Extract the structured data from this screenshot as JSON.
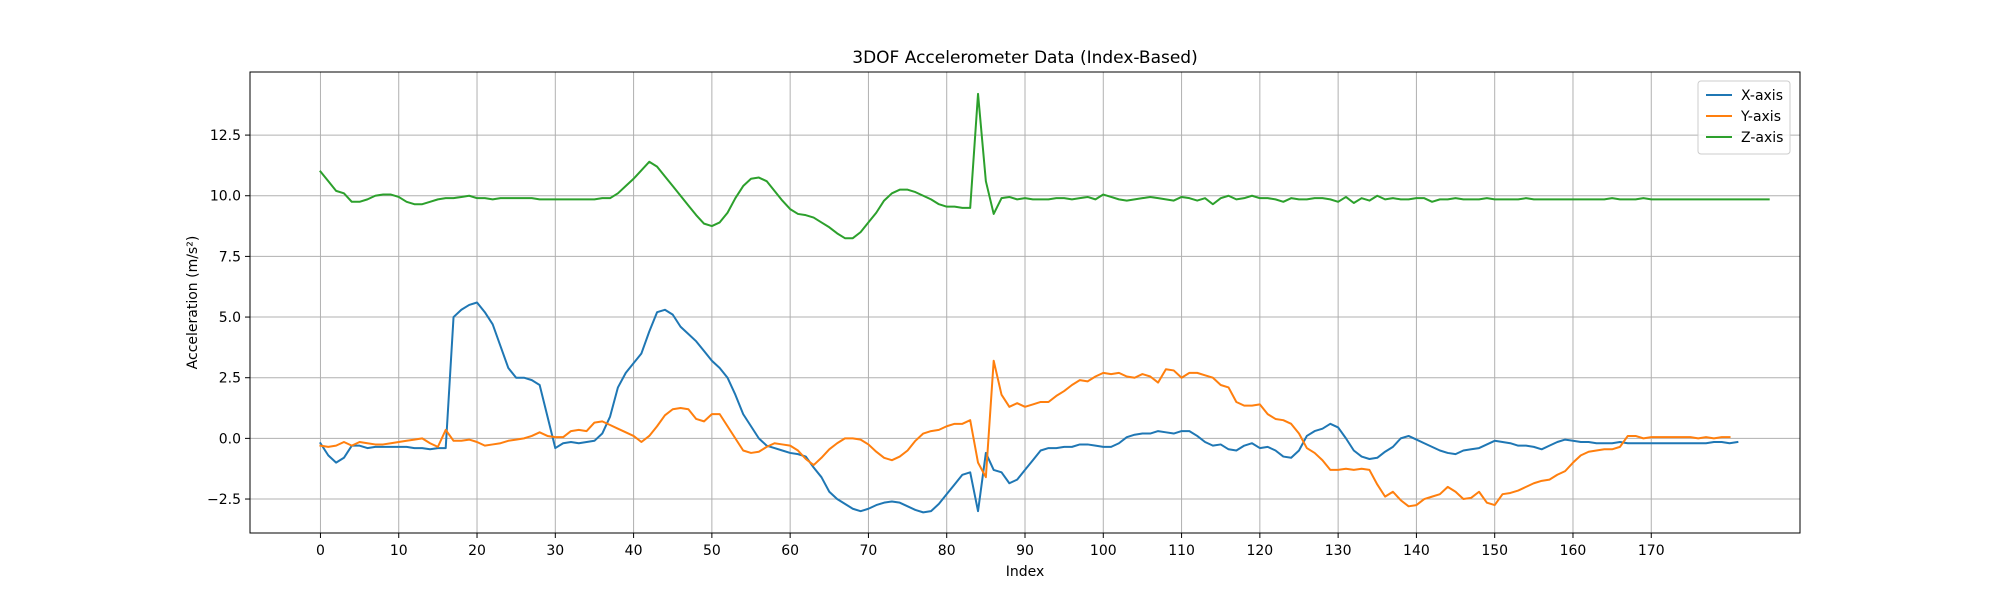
{
  "chart_data": {
    "type": "line",
    "title": "3DOF Accelerometer Data (Index-Based)",
    "xlabel": "Index",
    "ylabel": "Acceleration (m/s²)",
    "xlim": [
      -9,
      189
    ],
    "ylim": [
      -3.9,
      15.1
    ],
    "xticks": [
      0,
      10,
      20,
      30,
      40,
      50,
      60,
      70,
      80,
      90,
      100,
      110,
      120,
      130,
      140,
      150,
      160,
      170
    ],
    "yticks": [
      -2.5,
      0.0,
      2.5,
      5.0,
      7.5,
      10.0,
      12.5
    ],
    "ytick_labels": [
      "−2.5",
      "0.0",
      "2.5",
      "5.0",
      "7.5",
      "10.0",
      "12.5"
    ],
    "grid": true,
    "legend": "top-right",
    "x_start": 0,
    "series": [
      {
        "name": "X-axis",
        "color": "#1f77b4",
        "values": [
          -0.2,
          -0.7,
          -1.0,
          -0.8,
          -0.3,
          -0.3,
          -0.4,
          -0.35,
          -0.35,
          -0.35,
          -0.35,
          -0.35,
          -0.4,
          -0.4,
          -0.45,
          -0.4,
          -0.4,
          5.0,
          5.3,
          5.5,
          5.6,
          5.2,
          4.7,
          3.8,
          2.9,
          2.5,
          2.5,
          2.4,
          2.2,
          0.9,
          -0.4,
          -0.2,
          -0.15,
          -0.2,
          -0.15,
          -0.1,
          0.2,
          0.9,
          2.1,
          2.7,
          3.1,
          3.5,
          4.4,
          5.2,
          5.3,
          5.1,
          4.6,
          4.3,
          4.0,
          3.6,
          3.2,
          2.9,
          2.5,
          1.8,
          1.0,
          0.5,
          0.0,
          -0.3,
          -0.4,
          -0.5,
          -0.6,
          -0.65,
          -0.75,
          -1.2,
          -1.6,
          -2.2,
          -2.5,
          -2.7,
          -2.9,
          -3.0,
          -2.9,
          -2.75,
          -2.65,
          -2.6,
          -2.65,
          -2.8,
          -2.95,
          -3.05,
          -3.0,
          -2.7,
          -2.3,
          -1.9,
          -1.5,
          -1.4,
          -3.0,
          -0.6,
          -1.3,
          -1.4,
          -1.85,
          -1.7,
          -1.3,
          -0.9,
          -0.5,
          -0.4,
          -0.4,
          -0.35,
          -0.35,
          -0.25,
          -0.25,
          -0.3,
          -0.35,
          -0.35,
          -0.2,
          0.05,
          0.15,
          0.2,
          0.2,
          0.3,
          0.25,
          0.2,
          0.3,
          0.3,
          0.1,
          -0.15,
          -0.3,
          -0.25,
          -0.45,
          -0.5,
          -0.3,
          -0.2,
          -0.4,
          -0.35,
          -0.5,
          -0.75,
          -0.8,
          -0.5,
          0.1,
          0.3,
          0.4,
          0.6,
          0.45,
          0.0,
          -0.5,
          -0.75,
          -0.85,
          -0.8,
          -0.55,
          -0.35,
          0.0,
          0.1,
          -0.05,
          -0.2,
          -0.35,
          -0.5,
          -0.6,
          -0.65,
          -0.5,
          -0.45,
          -0.4,
          -0.25,
          -0.1,
          -0.15,
          -0.2,
          -0.3,
          -0.3,
          -0.35,
          -0.45,
          -0.3,
          -0.15,
          -0.05,
          -0.1,
          -0.15,
          -0.15,
          -0.2,
          -0.2,
          -0.2,
          -0.15,
          -0.2,
          -0.2,
          -0.2,
          -0.2,
          -0.2,
          -0.2,
          -0.2,
          -0.2,
          -0.2,
          -0.2,
          -0.2,
          -0.15,
          -0.15,
          -0.2,
          -0.15
        ]
      },
      {
        "name": "Y-axis",
        "color": "#ff7f0e",
        "values": [
          -0.3,
          -0.35,
          -0.3,
          -0.15,
          -0.3,
          -0.15,
          -0.2,
          -0.25,
          -0.25,
          -0.2,
          -0.15,
          -0.1,
          -0.05,
          0.0,
          -0.2,
          -0.35,
          0.35,
          -0.1,
          -0.1,
          -0.05,
          -0.15,
          -0.3,
          -0.25,
          -0.2,
          -0.1,
          -0.05,
          0.0,
          0.1,
          0.25,
          0.1,
          0.05,
          0.05,
          0.3,
          0.35,
          0.3,
          0.65,
          0.7,
          0.55,
          0.4,
          0.25,
          0.1,
          -0.15,
          0.1,
          0.5,
          0.95,
          1.2,
          1.25,
          1.2,
          0.8,
          0.7,
          1.0,
          1.0,
          0.5,
          0.0,
          -0.5,
          -0.6,
          -0.55,
          -0.35,
          -0.2,
          -0.25,
          -0.3,
          -0.5,
          -0.85,
          -1.1,
          -0.8,
          -0.45,
          -0.2,
          0.0,
          0.0,
          -0.05,
          -0.25,
          -0.55,
          -0.8,
          -0.9,
          -0.75,
          -0.5,
          -0.1,
          0.2,
          0.3,
          0.35,
          0.5,
          0.6,
          0.6,
          0.75,
          -1.0,
          -1.6,
          3.2,
          1.8,
          1.3,
          1.45,
          1.3,
          1.4,
          1.5,
          1.5,
          1.75,
          1.95,
          2.2,
          2.4,
          2.35,
          2.55,
          2.7,
          2.65,
          2.7,
          2.55,
          2.5,
          2.65,
          2.55,
          2.3,
          2.85,
          2.8,
          2.5,
          2.7,
          2.7,
          2.6,
          2.5,
          2.2,
          2.1,
          1.5,
          1.35,
          1.35,
          1.4,
          1.0,
          0.8,
          0.75,
          0.6,
          0.2,
          -0.4,
          -0.6,
          -0.9,
          -1.3,
          -1.3,
          -1.25,
          -1.3,
          -1.25,
          -1.3,
          -1.9,
          -2.4,
          -2.2,
          -2.55,
          -2.8,
          -2.75,
          -2.5,
          -2.4,
          -2.3,
          -2.0,
          -2.2,
          -2.5,
          -2.45,
          -2.2,
          -2.65,
          -2.75,
          -2.3,
          -2.25,
          -2.15,
          -2.0,
          -1.85,
          -1.75,
          -1.7,
          -1.5,
          -1.35,
          -1.0,
          -0.7,
          -0.55,
          -0.5,
          -0.45,
          -0.45,
          -0.35,
          0.1,
          0.1,
          0.0,
          0.05,
          0.05,
          0.05,
          0.05,
          0.05,
          0.05,
          0.0,
          0.05,
          0.0,
          0.05,
          0.05
        ]
      },
      {
        "name": "Z-axis",
        "color": "#2ca02c",
        "values": [
          11.0,
          10.6,
          10.2,
          10.1,
          9.75,
          9.75,
          9.85,
          10.0,
          10.05,
          10.05,
          9.95,
          9.75,
          9.65,
          9.65,
          9.75,
          9.85,
          9.9,
          9.9,
          9.95,
          10.0,
          9.9,
          9.9,
          9.85,
          9.9,
          9.9,
          9.9,
          9.9,
          9.9,
          9.85,
          9.85,
          9.85,
          9.85,
          9.85,
          9.85,
          9.85,
          9.85,
          9.9,
          9.9,
          10.1,
          10.4,
          10.7,
          11.05,
          11.4,
          11.2,
          10.8,
          10.4,
          10.0,
          9.6,
          9.2,
          8.85,
          8.75,
          8.9,
          9.3,
          9.9,
          10.4,
          10.7,
          10.75,
          10.6,
          10.2,
          9.8,
          9.45,
          9.25,
          9.2,
          9.1,
          8.9,
          8.7,
          8.45,
          8.25,
          8.25,
          8.5,
          8.9,
          9.3,
          9.8,
          10.1,
          10.25,
          10.25,
          10.15,
          10.0,
          9.85,
          9.65,
          9.55,
          9.55,
          9.5,
          9.5,
          14.2,
          10.6,
          9.25,
          9.9,
          9.95,
          9.85,
          9.9,
          9.85,
          9.85,
          9.85,
          9.9,
          9.9,
          9.85,
          9.9,
          9.95,
          9.85,
          10.05,
          9.95,
          9.85,
          9.8,
          9.85,
          9.9,
          9.95,
          9.9,
          9.85,
          9.8,
          9.95,
          9.9,
          9.8,
          9.9,
          9.65,
          9.9,
          10.0,
          9.85,
          9.9,
          10.0,
          9.9,
          9.9,
          9.85,
          9.75,
          9.9,
          9.85,
          9.85,
          9.9,
          9.9,
          9.85,
          9.75,
          9.95,
          9.7,
          9.9,
          9.8,
          10.0,
          9.85,
          9.9,
          9.85,
          9.85,
          9.9,
          9.9,
          9.75,
          9.85,
          9.85,
          9.9,
          9.85,
          9.85,
          9.85,
          9.9,
          9.85,
          9.85,
          9.85,
          9.85,
          9.9,
          9.85,
          9.85,
          9.85,
          9.85,
          9.85,
          9.85,
          9.85,
          9.85,
          9.85,
          9.85,
          9.9,
          9.85,
          9.85,
          9.85,
          9.9,
          9.85,
          9.85,
          9.85,
          9.85,
          9.85,
          9.85,
          9.85,
          9.85,
          9.85,
          9.85,
          9.85,
          9.85,
          9.85,
          9.85,
          9.85,
          9.85
        ]
      }
    ]
  }
}
